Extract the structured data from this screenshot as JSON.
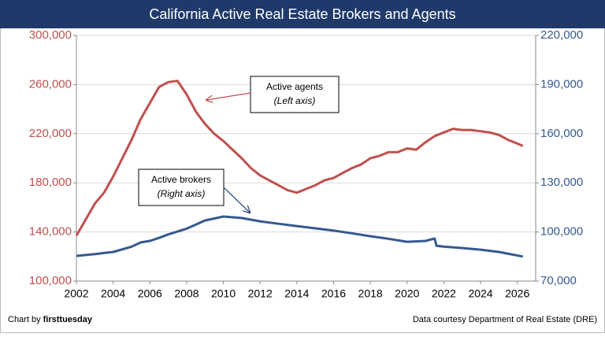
{
  "chart_data": {
    "type": "line",
    "title": "California Active Real Estate Brokers and Agents",
    "credit_prefix": "Chart by",
    "credit_brand": "firsttuesday",
    "source": "Data courtesy Department of Real Estate (DRE)",
    "annotations": [
      {
        "text": "Active agents",
        "note": "(Left axis)"
      },
      {
        "text": "Active brokers",
        "note": "(Right axis)"
      }
    ],
    "xlim": [
      2002,
      2027
    ],
    "xticks": [
      2002,
      2004,
      2006,
      2008,
      2010,
      2012,
      2014,
      2016,
      2018,
      2020,
      2022,
      2024,
      2026
    ],
    "ylim": [
      100000,
      300000
    ],
    "yticks": [
      {
        "value": 100000,
        "label": "100,000"
      },
      {
        "value": 140000,
        "label": "140,000"
      },
      {
        "value": 180000,
        "label": "180,000"
      },
      {
        "value": 220000,
        "label": "220,000"
      },
      {
        "value": 260000,
        "label": "260,000"
      },
      {
        "value": 300000,
        "label": "300,000"
      }
    ],
    "y2lim": [
      70000,
      220000
    ],
    "y2ticks": [
      {
        "value": 70000,
        "label": "70,000"
      },
      {
        "value": 100000,
        "label": "100,000"
      },
      {
        "value": 130000,
        "label": "130,000"
      },
      {
        "value": 160000,
        "label": "160,000"
      },
      {
        "value": 190000,
        "label": "190,000"
      },
      {
        "value": 220000,
        "label": "220,000"
      }
    ],
    "grid": true,
    "series": [
      {
        "name": "Active agents",
        "color": "#c0504d",
        "x": [
          2002,
          2002.5,
          2003,
          2003.5,
          2004,
          2004.5,
          2005,
          2005.5,
          2006,
          2006.5,
          2007,
          2007.5,
          2008,
          2008.5,
          2009,
          2009.5,
          2010,
          2010.5,
          2011,
          2011.5,
          2012,
          2012.5,
          2013,
          2013.5,
          2014,
          2014.5,
          2015,
          2015.5,
          2016,
          2016.5,
          2017,
          2017.5,
          2018,
          2018.5,
          2019,
          2019.5,
          2020,
          2020.5,
          2021,
          2021.5,
          2022,
          2022.5,
          2023,
          2023.5,
          2024,
          2024.5,
          2025,
          2025.5,
          2026,
          2026.3
        ],
        "values": [
          137000,
          150000,
          163000,
          172000,
          185000,
          200000,
          215000,
          232000,
          245000,
          258000,
          262000,
          263000,
          252000,
          238000,
          228000,
          220000,
          214000,
          207000,
          200000,
          192000,
          186000,
          182000,
          178000,
          174000,
          172000,
          175000,
          178000,
          182000,
          184000,
          188000,
          192000,
          195000,
          200000,
          202000,
          205000,
          205000,
          208000,
          207000,
          213000,
          218000,
          221000,
          224000,
          223000,
          223000,
          222000,
          221000,
          219000,
          215000,
          212000,
          210000
        ]
      },
      {
        "name": "Active brokers",
        "color": "#34598f",
        "axis": "y2",
        "x": [
          2002,
          2003,
          2004,
          2005,
          2005.5,
          2006,
          2006.5,
          2007,
          2008,
          2008.5,
          2009,
          2010,
          2011,
          2012,
          2013,
          2014,
          2015,
          2016,
          2017,
          2018,
          2019,
          2020,
          2021,
          2021.5,
          2021.6,
          2022,
          2023,
          2024,
          2025,
          2026.3
        ],
        "values": [
          85400,
          86500,
          87800,
          91000,
          93600,
          94500,
          96400,
          98500,
          102000,
          104500,
          107000,
          109400,
          108500,
          106500,
          105000,
          103600,
          102200,
          100800,
          99200,
          97400,
          95800,
          94000,
          94500,
          96000,
          91600,
          91000,
          90200,
          89200,
          87800,
          85000
        ]
      }
    ]
  }
}
